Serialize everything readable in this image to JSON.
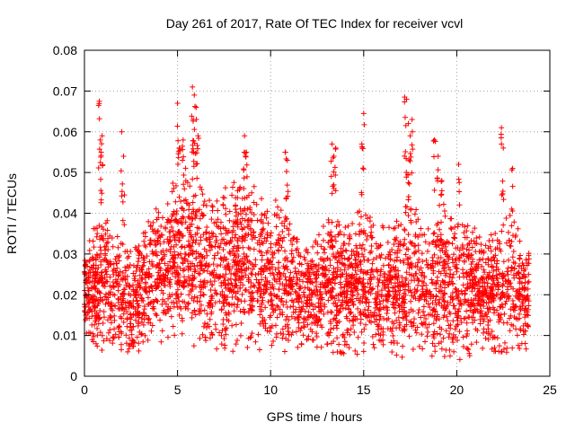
{
  "chart_data": {
    "type": "scatter",
    "title": "Day 261 of 2017, Rate Of TEC Index for receiver vcvl",
    "xlabel": "GPS time / hours",
    "ylabel": "ROTI / TECUs",
    "xlim": [
      0,
      25
    ],
    "ylim": [
      0,
      0.08
    ],
    "xticks": [
      "0",
      "5",
      "10",
      "15",
      "20",
      "25"
    ],
    "yticks": [
      "0",
      "0.01",
      "0.02",
      "0.03",
      "0.04",
      "0.05",
      "0.06",
      "0.07",
      "0.08"
    ],
    "grid": true,
    "marker": "+",
    "color": "#ff0000",
    "x_range": [
      0,
      23.9
    ],
    "envelope": {
      "x": [
        0,
        0.5,
        1,
        1.5,
        2,
        2.5,
        3,
        3.5,
        4,
        4.5,
        5,
        5.5,
        6,
        6.5,
        7,
        7.5,
        8,
        8.5,
        9,
        9.5,
        10,
        10.5,
        11,
        11.5,
        12,
        12.5,
        13,
        13.5,
        14,
        14.5,
        15,
        15.5,
        16,
        16.5,
        17,
        17.5,
        18,
        18.5,
        19,
        19.5,
        20,
        20.5,
        21,
        21.5,
        22,
        22.5,
        23,
        23.5,
        23.9
      ],
      "low": [
        0.009,
        0.007,
        0.006,
        0.005,
        0.005,
        0.005,
        0.006,
        0.007,
        0.008,
        0.008,
        0.01,
        0.008,
        0.005,
        0.004,
        0.005,
        0.006,
        0.006,
        0.006,
        0.005,
        0.006,
        0.007,
        0.006,
        0.006,
        0.006,
        0.006,
        0.006,
        0.005,
        0.005,
        0.005,
        0.005,
        0.004,
        0.004,
        0.004,
        0.004,
        0.004,
        0.005,
        0.004,
        0.004,
        0.004,
        0.004,
        0.004,
        0.004,
        0.005,
        0.005,
        0.005,
        0.005,
        0.005,
        0.006,
        0.007
      ],
      "high": [
        0.033,
        0.038,
        0.042,
        0.036,
        0.034,
        0.033,
        0.036,
        0.039,
        0.043,
        0.046,
        0.05,
        0.053,
        0.052,
        0.048,
        0.045,
        0.046,
        0.048,
        0.05,
        0.047,
        0.046,
        0.046,
        0.044,
        0.04,
        0.036,
        0.034,
        0.036,
        0.04,
        0.042,
        0.038,
        0.04,
        0.045,
        0.04,
        0.038,
        0.037,
        0.042,
        0.047,
        0.042,
        0.04,
        0.045,
        0.042,
        0.038,
        0.039,
        0.04,
        0.034,
        0.038,
        0.042,
        0.04,
        0.036,
        0.03
      ]
    },
    "outliers": {
      "x": [
        0.8,
        0.85,
        0.9,
        0.95,
        2.0,
        2.1,
        5.0,
        5.1,
        5.3,
        5.8,
        5.85,
        5.9,
        6.0,
        6.1,
        8.6,
        8.7,
        10.8,
        10.9,
        13.3,
        13.4,
        13.5,
        14.9,
        15.0,
        17.2,
        17.3,
        17.4,
        17.5,
        17.6,
        18.8,
        19.0,
        19.2,
        20.1,
        22.4,
        22.5,
        23.0
      ],
      "y": [
        0.0675,
        0.058,
        0.055,
        0.059,
        0.06,
        0.054,
        0.067,
        0.056,
        0.058,
        0.071,
        0.063,
        0.069,
        0.066,
        0.059,
        0.059,
        0.055,
        0.055,
        0.053,
        0.057,
        0.054,
        0.056,
        0.057,
        0.0645,
        0.0685,
        0.068,
        0.062,
        0.059,
        0.063,
        0.058,
        0.054,
        0.048,
        0.052,
        0.061,
        0.056,
        0.051
      ]
    },
    "points": {
      "x": [
        0.2,
        0.6,
        1.2,
        1.8,
        2.4,
        3.0,
        3.6,
        4.2,
        4.8,
        5.4,
        6.0,
        6.6,
        7.2,
        7.8,
        8.4,
        9.0,
        9.6,
        10.2,
        10.8,
        11.4,
        12.0,
        12.6,
        13.2,
        13.8,
        14.4,
        15.0,
        15.6,
        16.2,
        16.8,
        17.4,
        18.0,
        18.6,
        19.2,
        19.8,
        20.4,
        21.0,
        21.6,
        22.2,
        22.8,
        23.4
      ],
      "y": [
        0.021,
        0.024,
        0.025,
        0.019,
        0.018,
        0.02,
        0.022,
        0.024,
        0.028,
        0.03,
        0.029,
        0.023,
        0.024,
        0.026,
        0.027,
        0.025,
        0.026,
        0.024,
        0.021,
        0.019,
        0.018,
        0.019,
        0.021,
        0.02,
        0.018,
        0.02,
        0.019,
        0.017,
        0.02,
        0.022,
        0.019,
        0.02,
        0.021,
        0.019,
        0.018,
        0.019,
        0.018,
        0.02,
        0.019,
        0.017
      ]
    }
  }
}
